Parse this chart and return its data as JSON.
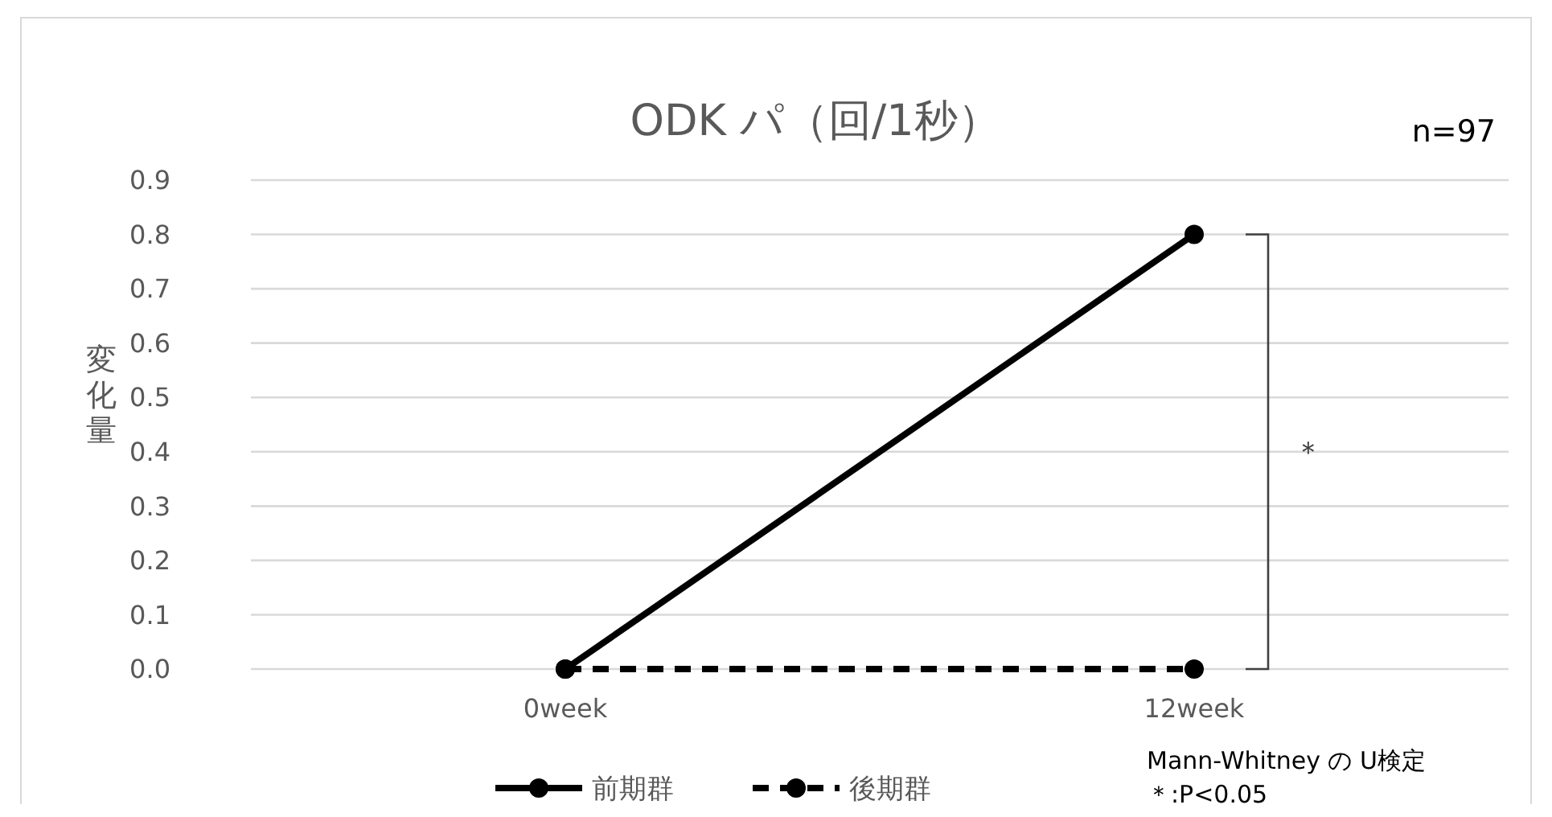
{
  "chart_data": {
    "type": "line",
    "title": "ODK パ（回/1秒）",
    "ylabel": "変化量",
    "categories": [
      "0week",
      "12week"
    ],
    "series": [
      {
        "name": "前期群",
        "color": "#000000",
        "values": [
          0,
          0.8
        ],
        "line_style": "solid"
      },
      {
        "name": "後期群",
        "color": "#000000",
        "values": [
          0,
          0
        ],
        "line_style": "dashed"
      }
    ],
    "ylim": [
      0,
      0.9
    ],
    "yticks": [
      {
        "value": 0,
        "label": "0.0"
      },
      0.1,
      0.2,
      0.3,
      0.4,
      0.5,
      0.6,
      0.7,
      0.8,
      0.9
    ],
    "grid": "y",
    "legend": "bottom",
    "marker": "circle",
    "annotations": [
      "n=97",
      "＊",
      "Mann-Whitney の U検定",
      "＊:P<0.05"
    ]
  }
}
